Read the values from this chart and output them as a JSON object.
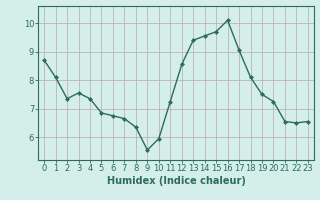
{
  "x": [
    0,
    1,
    2,
    3,
    4,
    5,
    6,
    7,
    8,
    9,
    10,
    11,
    12,
    13,
    14,
    15,
    16,
    17,
    18,
    19,
    20,
    21,
    22,
    23
  ],
  "y": [
    8.7,
    8.1,
    7.35,
    7.55,
    7.35,
    6.85,
    6.75,
    6.65,
    6.35,
    5.55,
    5.95,
    7.25,
    8.55,
    9.4,
    9.55,
    9.7,
    10.1,
    9.05,
    8.1,
    7.5,
    7.25,
    6.55,
    6.5,
    6.55
  ],
  "line_color": "#2d6b5e",
  "marker": "D",
  "marker_size": 2,
  "line_width": 1.0,
  "bg_color": "#d4eeea",
  "grid_color": "#b8a8a8",
  "tick_color": "#2d6b5e",
  "xlabel": "Humidex (Indice chaleur)",
  "xlabel_fontsize": 7,
  "xlim": [
    -0.5,
    23.5
  ],
  "ylim": [
    5.2,
    10.6
  ],
  "yticks": [
    6,
    7,
    8,
    9,
    10
  ],
  "xticks": [
    0,
    1,
    2,
    3,
    4,
    5,
    6,
    7,
    8,
    9,
    10,
    11,
    12,
    13,
    14,
    15,
    16,
    17,
    18,
    19,
    20,
    21,
    22,
    23
  ],
  "tick_fontsize": 6,
  "spine_color": "#2d6b5e"
}
